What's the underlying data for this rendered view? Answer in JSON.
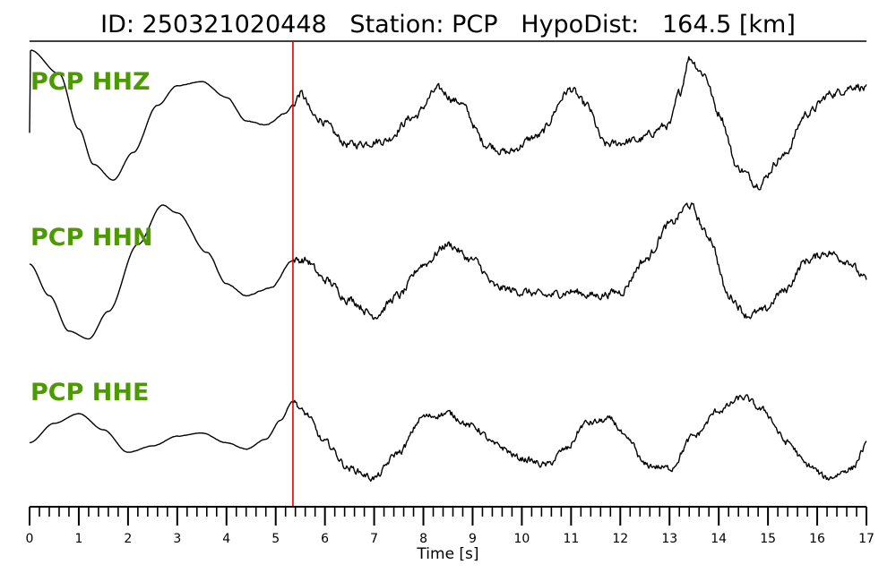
{
  "title": "ID: 250321020448   Station: PCP   HypoDist:   164.5 [km]",
  "colors": {
    "label": "#4c9a00",
    "trace": "#000000",
    "pick": "#e00000"
  },
  "chart_data": {
    "type": "line",
    "title": "ID: 250321020448   Station: PCP   HypoDist:   164.5 [km]",
    "xlabel": "Time [s]",
    "xlim": [
      0,
      17
    ],
    "xticks": [
      "0",
      "1",
      "2",
      "3",
      "4",
      "5",
      "6",
      "7",
      "8",
      "9",
      "10",
      "11",
      "12",
      "13",
      "14",
      "15",
      "16",
      "17"
    ],
    "pick_time": 5.35,
    "traces": [
      {
        "label": "PCP HHZ",
        "keypoints": [
          [
            0,
            -0.3
          ],
          [
            0.02,
            0.75
          ],
          [
            0.6,
            0.45
          ],
          [
            1.0,
            -0.25
          ],
          [
            1.3,
            -0.7
          ],
          [
            1.7,
            -0.9
          ],
          [
            2.1,
            -0.55
          ],
          [
            2.6,
            0.05
          ],
          [
            3.0,
            0.3
          ],
          [
            3.5,
            0.35
          ],
          [
            4.0,
            0.15
          ],
          [
            4.4,
            -0.15
          ],
          [
            4.8,
            -0.2
          ],
          [
            5.2,
            -0.05
          ],
          [
            5.35,
            0.05
          ],
          [
            5.5,
            0.2
          ],
          [
            5.8,
            -0.1
          ],
          [
            6.5,
            -0.45
          ],
          [
            7.2,
            -0.4
          ],
          [
            7.8,
            -0.1
          ],
          [
            8.3,
            0.25
          ],
          [
            8.7,
            0.1
          ],
          [
            9.3,
            -0.45
          ],
          [
            9.7,
            -0.55
          ],
          [
            10.3,
            -0.35
          ],
          [
            11.0,
            0.25
          ],
          [
            11.3,
            0.05
          ],
          [
            11.7,
            -0.45
          ],
          [
            12.3,
            -0.4
          ],
          [
            13.0,
            -0.2
          ],
          [
            13.2,
            0.2
          ],
          [
            13.4,
            0.65
          ],
          [
            13.7,
            0.45
          ],
          [
            14.0,
            -0.05
          ],
          [
            14.4,
            -0.75
          ],
          [
            14.8,
            -0.95
          ],
          [
            15.3,
            -0.6
          ],
          [
            15.8,
            -0.05
          ],
          [
            16.3,
            0.2
          ],
          [
            16.8,
            0.3
          ],
          [
            17,
            0.25
          ]
        ],
        "noise": [
          [
            0,
            0
          ],
          [
            5.3,
            0.006
          ],
          [
            5.4,
            0.06
          ],
          [
            17,
            0.06
          ]
        ]
      },
      {
        "label": "PCP HHN",
        "keypoints": [
          [
            0,
            0.0
          ],
          [
            0.4,
            -0.4
          ],
          [
            0.8,
            -0.85
          ],
          [
            1.2,
            -0.95
          ],
          [
            1.6,
            -0.6
          ],
          [
            2.2,
            0.25
          ],
          [
            2.7,
            0.75
          ],
          [
            3.0,
            0.65
          ],
          [
            3.6,
            0.15
          ],
          [
            4.0,
            -0.25
          ],
          [
            4.4,
            -0.4
          ],
          [
            4.9,
            -0.3
          ],
          [
            5.35,
            0.05
          ],
          [
            5.6,
            0.05
          ],
          [
            6.0,
            -0.2
          ],
          [
            6.5,
            -0.45
          ],
          [
            7.0,
            -0.65
          ],
          [
            7.5,
            -0.4
          ],
          [
            8.0,
            0.0
          ],
          [
            8.5,
            0.25
          ],
          [
            9.0,
            0.05
          ],
          [
            9.5,
            -0.3
          ],
          [
            10.0,
            -0.35
          ],
          [
            10.5,
            -0.4
          ],
          [
            11.0,
            -0.35
          ],
          [
            11.5,
            -0.4
          ],
          [
            12.0,
            -0.35
          ],
          [
            12.5,
            0.05
          ],
          [
            13.0,
            0.5
          ],
          [
            13.4,
            0.75
          ],
          [
            13.8,
            0.35
          ],
          [
            14.2,
            -0.4
          ],
          [
            14.6,
            -0.65
          ],
          [
            14.9,
            -0.6
          ],
          [
            15.3,
            -0.35
          ],
          [
            15.8,
            0.05
          ],
          [
            16.2,
            0.15
          ],
          [
            16.6,
            0.05
          ],
          [
            17,
            -0.2
          ]
        ],
        "noise": [
          [
            0,
            0
          ],
          [
            5.3,
            0.006
          ],
          [
            5.4,
            0.06
          ],
          [
            17,
            0.06
          ]
        ]
      },
      {
        "label": "PCP HHE",
        "keypoints": [
          [
            0,
            -0.2
          ],
          [
            0.5,
            0.1
          ],
          [
            1.0,
            0.25
          ],
          [
            1.5,
            0.0
          ],
          [
            2.0,
            -0.35
          ],
          [
            2.5,
            -0.25
          ],
          [
            3.0,
            -0.1
          ],
          [
            3.5,
            -0.05
          ],
          [
            4.0,
            -0.2
          ],
          [
            4.4,
            -0.3
          ],
          [
            4.8,
            -0.15
          ],
          [
            5.1,
            0.15
          ],
          [
            5.35,
            0.45
          ],
          [
            5.6,
            0.25
          ],
          [
            6.0,
            -0.2
          ],
          [
            6.5,
            -0.6
          ],
          [
            7.0,
            -0.75
          ],
          [
            7.5,
            -0.35
          ],
          [
            8.0,
            0.2
          ],
          [
            8.5,
            0.25
          ],
          [
            9.0,
            0.05
          ],
          [
            9.5,
            -0.25
          ],
          [
            10.0,
            -0.45
          ],
          [
            10.5,
            -0.55
          ],
          [
            10.9,
            -0.3
          ],
          [
            11.3,
            0.1
          ],
          [
            11.8,
            0.15
          ],
          [
            12.2,
            -0.2
          ],
          [
            12.5,
            -0.55
          ],
          [
            13.0,
            -0.6
          ],
          [
            13.5,
            -0.1
          ],
          [
            14.0,
            0.3
          ],
          [
            14.5,
            0.5
          ],
          [
            14.9,
            0.3
          ],
          [
            15.4,
            -0.2
          ],
          [
            15.8,
            -0.55
          ],
          [
            16.2,
            -0.75
          ],
          [
            16.7,
            -0.6
          ],
          [
            17,
            -0.25
          ]
        ],
        "noise": [
          [
            0,
            0
          ],
          [
            5.3,
            0.006
          ],
          [
            5.4,
            0.06
          ],
          [
            17,
            0.06
          ]
        ]
      }
    ]
  }
}
